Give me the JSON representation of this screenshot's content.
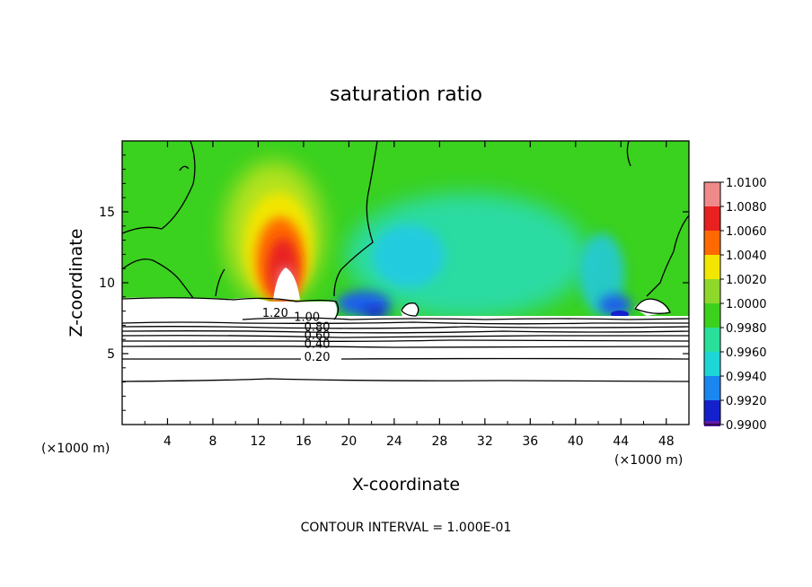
{
  "chart_data": {
    "type": "heatmap",
    "title": "saturation ratio",
    "xlabel": "X-coordinate",
    "ylabel": "Z-coordinate",
    "x_unit": "(×1000 m)",
    "x_unit_right": "(×1000 m)",
    "xlim": [
      0,
      50
    ],
    "ylim": [
      0,
      20
    ],
    "x_ticks": [
      "4",
      "8",
      "12",
      "16",
      "20",
      "24",
      "28",
      "32",
      "36",
      "40",
      "44",
      "48"
    ],
    "y_ticks": [
      "5",
      "10",
      "15"
    ],
    "colorbar": {
      "labels": [
        "1.0100",
        "1.0080",
        "1.0060",
        "1.0040",
        "1.0020",
        "1.0000",
        "0.9980",
        "0.9960",
        "0.9940",
        "0.9920",
        "0.9900"
      ],
      "colors": [
        "#f08a8a",
        "#e82020",
        "#ff6a00",
        "#f2e600",
        "#8ed82b",
        "#3cd11c",
        "#28e09a",
        "#1ed6d6",
        "#1a86f0",
        "#1420cc",
        "#6018a8"
      ]
    },
    "contour_labels": [
      {
        "text": "1.20",
        "x": 13.5,
        "y": 7.6
      },
      {
        "text": "1.00",
        "x": 16.3,
        "y": 7.3
      },
      {
        "text": "0.80",
        "x": 17.2,
        "y": 6.6
      },
      {
        "text": "0.60",
        "x": 17.2,
        "y": 6.0
      },
      {
        "text": "0.40",
        "x": 17.2,
        "y": 5.4
      },
      {
        "text": "0.20",
        "x": 17.2,
        "y": 4.5
      }
    ],
    "contour_interval_note": "CONTOUR INTERVAL = 1.000E-01"
  }
}
